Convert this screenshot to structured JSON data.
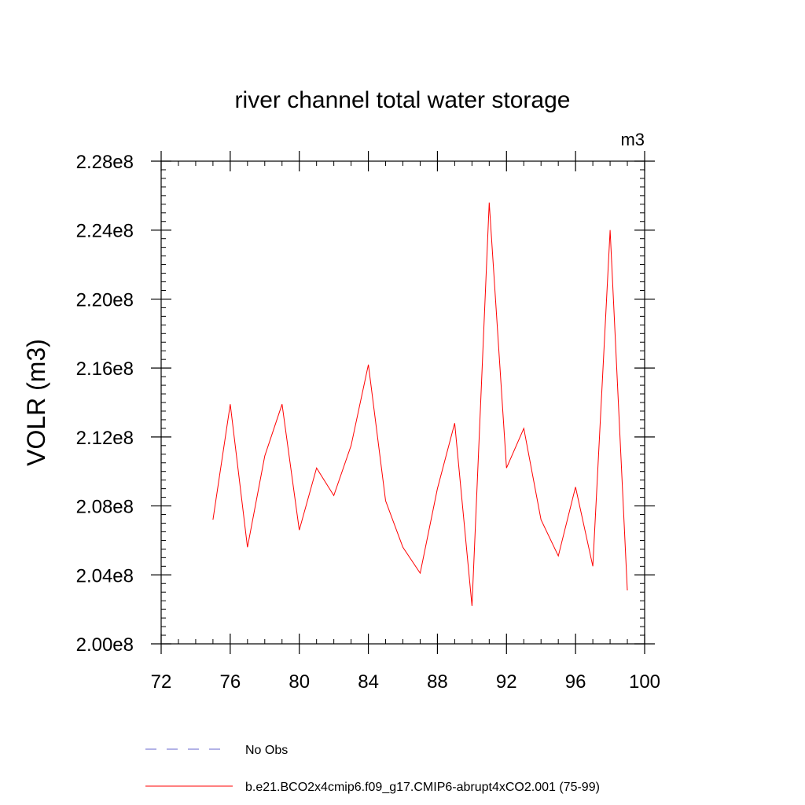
{
  "chart_data": {
    "type": "line",
    "title": "river channel total water storage",
    "units_label": "m3",
    "ylabel": "VOLR  (m3)",
    "xlabel": "",
    "xlim": [
      72,
      100
    ],
    "ylim": [
      200000000.0,
      228000000.0
    ],
    "x_ticks": [
      72,
      76,
      80,
      84,
      88,
      92,
      96,
      100
    ],
    "x_tick_labels": [
      "72",
      "76",
      "80",
      "84",
      "88",
      "92",
      "96",
      "100"
    ],
    "y_ticks": [
      200000000.0,
      204000000.0,
      208000000.0,
      212000000.0,
      216000000.0,
      220000000.0,
      224000000.0,
      228000000.0
    ],
    "y_tick_labels": [
      "2.00e8",
      "2.04e8",
      "2.08e8",
      "2.12e8",
      "2.16e8",
      "2.20e8",
      "2.24e8",
      "2.28e8"
    ],
    "x_minor_step": 1,
    "y_minor_step": 500000.0,
    "grid": false,
    "legend_position": "bottom",
    "series": [
      {
        "name": "No Obs",
        "color": "#6666cc",
        "dash": "dashed",
        "x": [],
        "values": []
      },
      {
        "name": "b.e21.BCO2x4cmip6.f09_g17.CMIP6-abrupt4xCO2.001 (75-99)",
        "color": "#ff0000",
        "dash": "solid",
        "x": [
          75,
          76,
          77,
          78,
          79,
          80,
          81,
          82,
          83,
          84,
          85,
          86,
          87,
          88,
          89,
          90,
          91,
          92,
          93,
          94,
          95,
          96,
          97,
          98,
          99
        ],
        "values": [
          207200000.0,
          213900000.0,
          205600000.0,
          210900000.0,
          213900000.0,
          206600000.0,
          210200000.0,
          208600000.0,
          211500000.0,
          216200000.0,
          208300000.0,
          205600000.0,
          204100000.0,
          209000000.0,
          212800000.0,
          202200000.0,
          225600000.0,
          210200000.0,
          212500000.0,
          207200000.0,
          205100000.0,
          209100000.0,
          204500000.0,
          224000000.0,
          203100000.0
        ]
      }
    ]
  }
}
